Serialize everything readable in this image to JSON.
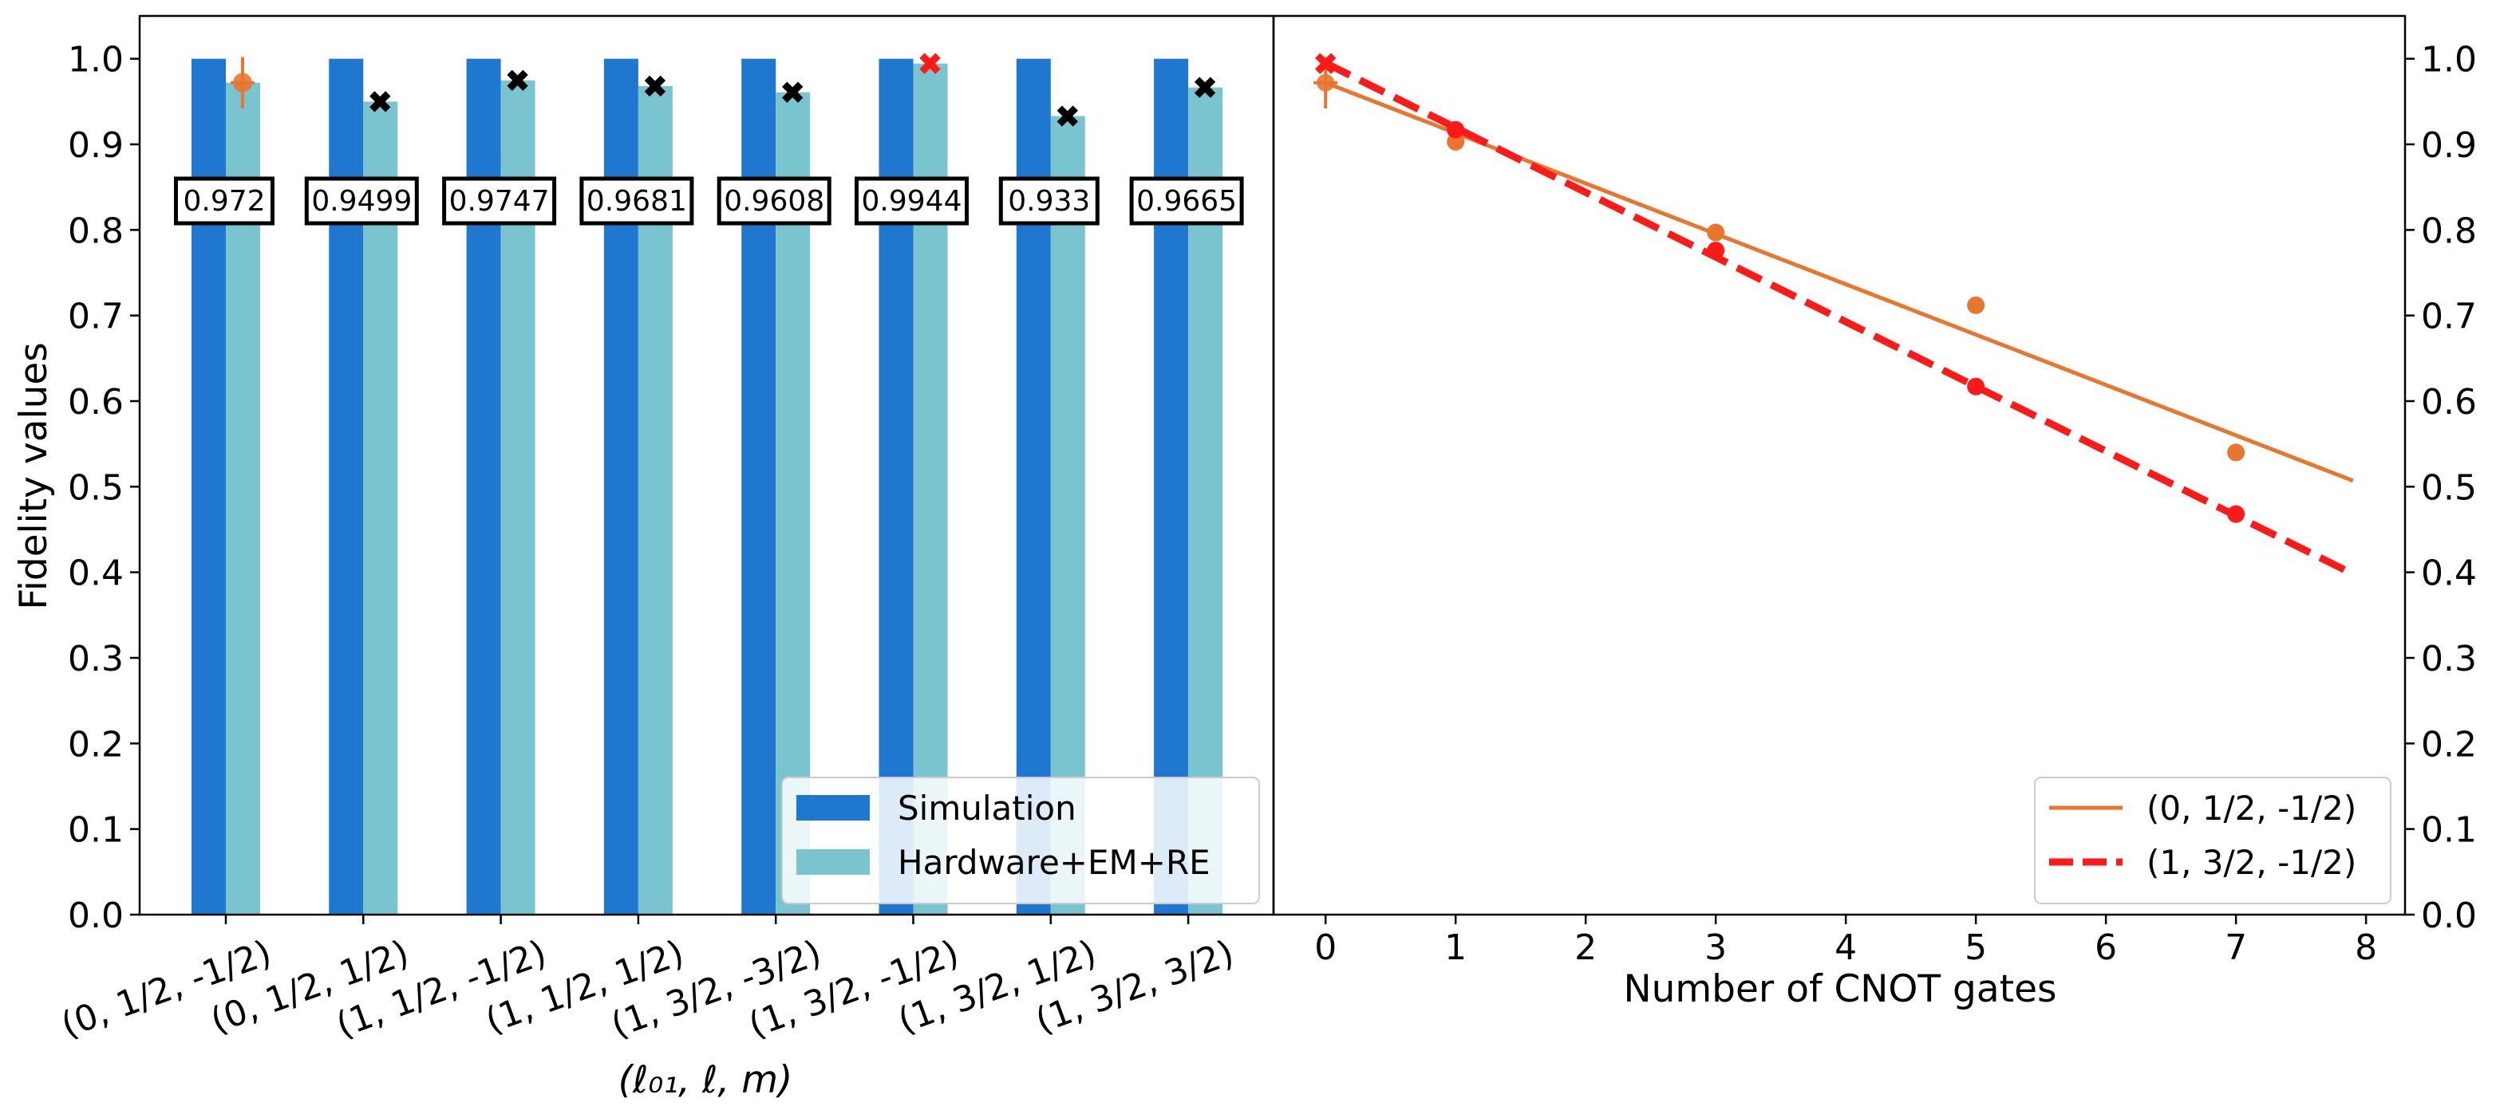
{
  "chart_data": [
    {
      "type": "bar",
      "ylabel": "Fidelity values",
      "xlabel": "(ℓ₀₁, ℓ, m)",
      "ylim": [
        0.0,
        1.05
      ],
      "yticks": [
        "0.0",
        "0.1",
        "0.2",
        "0.3",
        "0.4",
        "0.5",
        "0.6",
        "0.7",
        "0.8",
        "0.9",
        "1.0"
      ],
      "categories": [
        "(0, 1/2, -1/2)",
        "(0, 1/2, 1/2)",
        "(1, 1/2, -1/2)",
        "(1, 1/2, 1/2)",
        "(1, 3/2, -3/2)",
        "(1, 3/2, -1/2)",
        "(1, 3/2, 1/2)",
        "(1, 3/2, 3/2)"
      ],
      "series": [
        {
          "name": "Simulation",
          "color": "#1f77d0",
          "values": [
            1.0,
            1.0,
            1.0,
            1.0,
            1.0,
            1.0,
            1.0,
            1.0
          ]
        },
        {
          "name": "Hardware+EM+RE",
          "color": "#7ac4cf",
          "values": [
            0.972,
            0.9499,
            0.9747,
            0.9681,
            0.9608,
            0.9944,
            0.933,
            0.9665
          ]
        }
      ],
      "data_labels": [
        "0.972",
        "0.9499",
        "0.9747",
        "0.9681",
        "0.9608",
        "0.9944",
        "0.933",
        "0.9665"
      ],
      "markers": [
        {
          "value": 0.972,
          "color": "#e8762f",
          "shape": "plus",
          "error": 0.03
        },
        {
          "value": 0.9499,
          "color": "#000000",
          "shape": "x"
        },
        {
          "value": 0.9747,
          "color": "#000000",
          "shape": "x"
        },
        {
          "value": 0.9681,
          "color": "#000000",
          "shape": "x"
        },
        {
          "value": 0.9608,
          "color": "#000000",
          "shape": "x"
        },
        {
          "value": 0.9944,
          "color": "#ff1a1a",
          "shape": "x"
        },
        {
          "value": 0.933,
          "color": "#000000",
          "shape": "x"
        },
        {
          "value": 0.9665,
          "color": "#000000",
          "shape": "x"
        }
      ],
      "legend_position": "bottom-right"
    },
    {
      "type": "scatter",
      "xlabel": "Number of CNOT gates",
      "xlim": [
        -0.4,
        8.3
      ],
      "ylim": [
        0.0,
        1.05
      ],
      "xticks": [
        "0",
        "1",
        "2",
        "3",
        "4",
        "5",
        "6",
        "7",
        "8"
      ],
      "yticks": [
        "0.0",
        "0.1",
        "0.2",
        "0.3",
        "0.4",
        "0.5",
        "0.6",
        "0.7",
        "0.8",
        "0.9",
        "1.0"
      ],
      "y_axis_side": "right",
      "series": [
        {
          "name": "(0, 1/2, -1/2)",
          "color": "#e8762f",
          "line_style": "solid",
          "points": [
            [
              1,
              0.903
            ],
            [
              3,
              0.797
            ],
            [
              5,
              0.712
            ],
            [
              7,
              0.54
            ]
          ],
          "first_point": {
            "x": 0,
            "y": 0.972,
            "error": 0.03,
            "marker": "plus"
          },
          "fit": [
            [
              0,
              0.972
            ],
            [
              7.9,
              0.507
            ]
          ]
        },
        {
          "name": "(1, 3/2, -1/2)",
          "color": "#ff1a1a",
          "line_style": "dashed",
          "points": [
            [
              1,
              0.917
            ],
            [
              3,
              0.776
            ],
            [
              5,
              0.617
            ],
            [
              7,
              0.468
            ]
          ],
          "first_point": {
            "x": 0,
            "y": 0.9944,
            "marker": "x"
          },
          "fit": [
            [
              0,
              0.995
            ],
            [
              7.9,
              0.398
            ]
          ]
        }
      ],
      "legend_position": "bottom-right"
    }
  ]
}
